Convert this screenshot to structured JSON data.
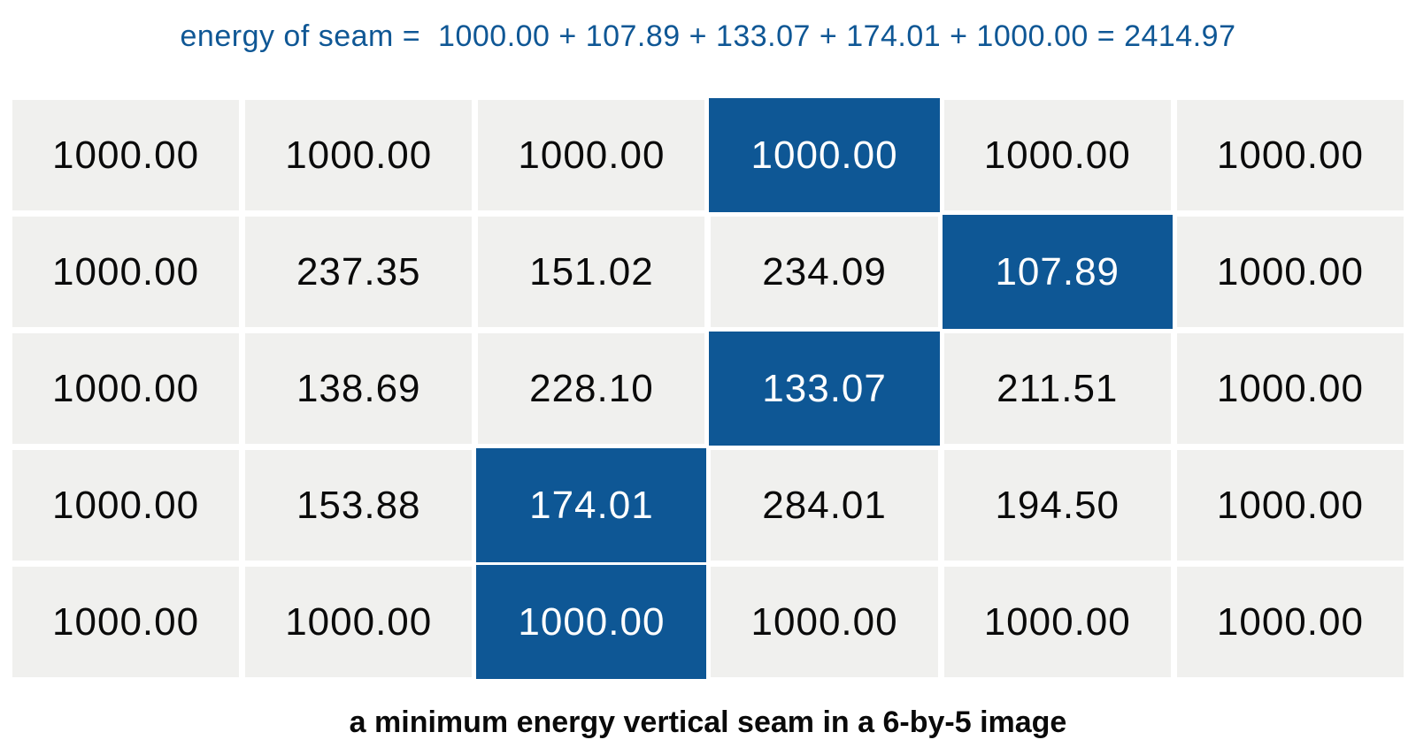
{
  "title": {
    "text": "energy of seam =  1000.00 + 107.89 + 133.07 + 174.01 + 1000.00 = 2414.97"
  },
  "caption": {
    "text": "a minimum energy vertical seam in a 6-by-5 image"
  },
  "colors": {
    "title_text": "#0f5795",
    "seam_bg": "#0e5795",
    "seam_text": "#ffffff",
    "cell_bg": "#f0f0ee",
    "cell_text": "#0a0a0a",
    "page_bg": "#ffffff"
  },
  "seam_values": [
    1000.0,
    107.89,
    133.07,
    174.01,
    1000.0
  ],
  "seam_total": 2414.97,
  "chart_data": {
    "type": "heatmap",
    "title": "energy of seam =  1000.00 + 107.89 + 133.07 + 174.01 + 1000.00 = 2414.97",
    "caption": "a minimum energy vertical seam in a 6-by-5 image",
    "columns": 6,
    "rows": 5,
    "cell_values": [
      [
        "1000.00",
        "1000.00",
        "1000.00",
        "1000.00",
        "1000.00",
        "1000.00"
      ],
      [
        "1000.00",
        "237.35",
        "151.02",
        "234.09",
        "107.89",
        "1000.00"
      ],
      [
        "1000.00",
        "138.69",
        "228.10",
        "133.07",
        "211.51",
        "1000.00"
      ],
      [
        "1000.00",
        "153.88",
        "174.01",
        "284.01",
        "194.50",
        "1000.00"
      ],
      [
        "1000.00",
        "1000.00",
        "1000.00",
        "1000.00",
        "1000.00",
        "1000.00"
      ]
    ],
    "seam_cells": [
      [
        0,
        3
      ],
      [
        1,
        4
      ],
      [
        2,
        3
      ],
      [
        3,
        2
      ],
      [
        4,
        2
      ]
    ],
    "legend_position": "none",
    "grid": "gapped-cells"
  }
}
